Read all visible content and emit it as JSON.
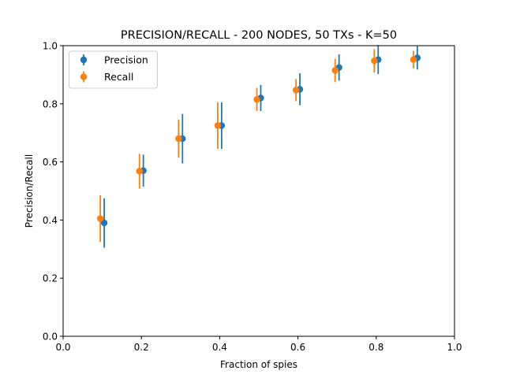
{
  "chart_data": {
    "type": "scatter",
    "title": "PRECISION/RECALL - 200 NODES, 50 TXs - K=50",
    "xlabel": "Fraction of spies",
    "ylabel": "Precision/Recall",
    "xlim": [
      0.0,
      1.0
    ],
    "ylim": [
      0.0,
      1.0
    ],
    "x_ticks": [
      "0.0",
      "0.2",
      "0.4",
      "0.6",
      "0.8",
      "1.0"
    ],
    "y_ticks": [
      "0.0",
      "0.2",
      "0.4",
      "0.6",
      "0.8",
      "1.0"
    ],
    "grid": false,
    "legend": "top-left",
    "error_bars": true,
    "series": [
      {
        "name": "Precision",
        "color": "#1f77b4",
        "x": [
          0.105,
          0.205,
          0.305,
          0.405,
          0.505,
          0.605,
          0.705,
          0.805,
          0.905
        ],
        "y": [
          0.39,
          0.57,
          0.68,
          0.725,
          0.82,
          0.85,
          0.925,
          0.952,
          0.958
        ],
        "yerr": [
          0.085,
          0.055,
          0.085,
          0.08,
          0.045,
          0.055,
          0.045,
          0.05,
          0.04
        ]
      },
      {
        "name": "Recall",
        "color": "#ff7f0e",
        "x": [
          0.095,
          0.195,
          0.295,
          0.395,
          0.495,
          0.595,
          0.695,
          0.795,
          0.895
        ],
        "y": [
          0.405,
          0.568,
          0.68,
          0.725,
          0.815,
          0.847,
          0.915,
          0.948,
          0.952
        ],
        "yerr": [
          0.08,
          0.06,
          0.065,
          0.08,
          0.04,
          0.038,
          0.04,
          0.04,
          0.03
        ]
      }
    ]
  }
}
